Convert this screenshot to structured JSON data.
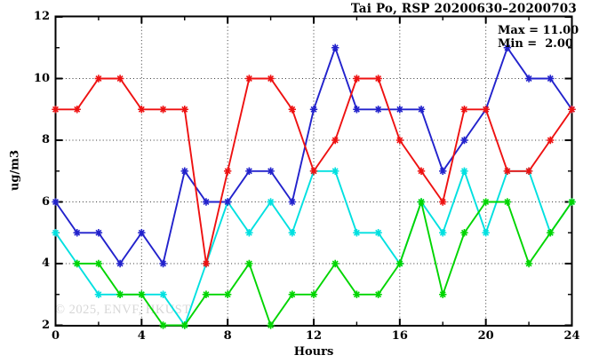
{
  "title": "Tai Po, RSP 20200630–20200703",
  "annotation": {
    "max_label": "Max = 11.00",
    "min_label": "Min =  2.00"
  },
  "watermark": "© 2025, ENVF, HKUST",
  "axes": {
    "x": {
      "label": "Hours",
      "min": 0,
      "max": 24,
      "major_ticks": [
        0,
        4,
        8,
        12,
        16,
        20,
        24
      ],
      "minor_ticks": [
        2,
        6,
        10,
        14,
        18,
        22
      ],
      "grid_at": [
        4,
        8,
        12,
        16,
        20
      ]
    },
    "y": {
      "label": "ug/m3",
      "min": 2,
      "max": 12,
      "major_ticks": [
        2,
        4,
        6,
        8,
        10,
        12
      ],
      "minor_ticks": [
        3,
        5,
        7,
        9,
        11
      ],
      "grid_at": [
        4,
        6,
        8,
        10
      ]
    }
  },
  "chart_data": {
    "type": "line",
    "title": "Tai Po, RSP 20200630–20200703",
    "xlabel": "Hours",
    "ylabel": "ug/m3",
    "xlim": [
      0,
      24
    ],
    "ylim": [
      2,
      12
    ],
    "grid": true,
    "legend": false,
    "marker": "asterisk",
    "annotations": [
      "Max = 11.00",
      "Min =  2.00"
    ],
    "x": [
      0,
      1,
      2,
      3,
      4,
      5,
      6,
      7,
      8,
      9,
      10,
      11,
      12,
      13,
      14,
      15,
      16,
      17,
      18,
      19,
      20,
      21,
      22,
      23,
      24
    ],
    "series": [
      {
        "name": "series-red",
        "color": "#ee1111",
        "values": [
          9,
          9,
          10,
          10,
          9,
          9,
          9,
          4,
          7,
          10,
          10,
          9,
          7,
          8,
          10,
          10,
          8,
          7,
          6,
          9,
          9,
          7,
          7,
          8,
          9
        ]
      },
      {
        "name": "series-blue",
        "color": "#2222cc",
        "values": [
          6,
          5,
          5,
          4,
          5,
          4,
          7,
          6,
          6,
          7,
          7,
          6,
          9,
          11,
          9,
          9,
          9,
          9,
          7,
          8,
          9,
          11,
          10,
          10,
          9
        ]
      },
      {
        "name": "series-cyan",
        "color": "#00e0e0",
        "values": [
          5,
          4,
          3,
          3,
          3,
          3,
          2,
          4,
          6,
          5,
          6,
          5,
          7,
          7,
          5,
          5,
          4,
          6,
          5,
          7,
          5,
          7,
          7,
          5,
          6
        ]
      },
      {
        "name": "series-green",
        "color": "#00d500",
        "values": [
          null,
          4,
          4,
          3,
          3,
          2,
          2,
          3,
          3,
          4,
          2,
          3,
          3,
          4,
          3,
          3,
          4,
          6,
          3,
          5,
          6,
          6,
          4,
          5,
          6
        ]
      }
    ]
  }
}
